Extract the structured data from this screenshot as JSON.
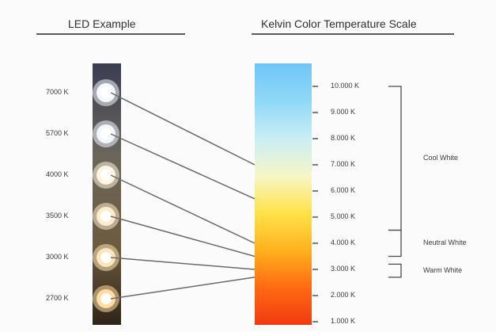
{
  "titles": {
    "led_example": "LED Example",
    "kelvin_scale": "Kelvin Color Temperature Scale"
  },
  "leds": [
    {
      "label": "7000 K",
      "kelvin": 7000,
      "color": "#f4f8ff"
    },
    {
      "label": "5700 K",
      "kelvin": 5700,
      "color": "#f1f6ff"
    },
    {
      "label": "4000 K",
      "kelvin": 4000,
      "color": "#fff4df"
    },
    {
      "label": "3500 K",
      "kelvin": 3500,
      "color": "#ffeccc"
    },
    {
      "label": "3000 K",
      "kelvin": 3000,
      "color": "#ffe5b8"
    },
    {
      "label": "2700 K",
      "kelvin": 2700,
      "color": "#ffdca2"
    }
  ],
  "scale": {
    "min": 1000,
    "max": 10000,
    "ticks": [
      {
        "label": "10.000 K",
        "kelvin": 10000
      },
      {
        "label": "9.000 K",
        "kelvin": 9000
      },
      {
        "label": "8.000 K",
        "kelvin": 8000
      },
      {
        "label": "7.000 K",
        "kelvin": 7000
      },
      {
        "label": "6.000 K",
        "kelvin": 6000
      },
      {
        "label": "5.000 K",
        "kelvin": 5000
      },
      {
        "label": "4.000 K",
        "kelvin": 4000
      },
      {
        "label": "3.000 K",
        "kelvin": 3000
      },
      {
        "label": "2.000 K",
        "kelvin": 2000
      },
      {
        "label": "1.000 K",
        "kelvin": 1000
      }
    ],
    "gradient_colors": [
      "#6ec6f7",
      "#8fd8f7",
      "#c9eef4",
      "#f6f6c8",
      "#ffe34a",
      "#ffb21e",
      "#ff6a12",
      "#f03a10"
    ]
  },
  "ranges": [
    {
      "label": "Cool White",
      "from": 4500,
      "to": 10000
    },
    {
      "label": "Neutral White",
      "from": 3500,
      "to": 4500
    },
    {
      "label": "Warm White",
      "from": 2700,
      "to": 3200
    }
  ],
  "colors": {
    "connector": "#6a6a6a",
    "bracket": "#4a4a4a",
    "led_strip": "#2f2a22"
  }
}
